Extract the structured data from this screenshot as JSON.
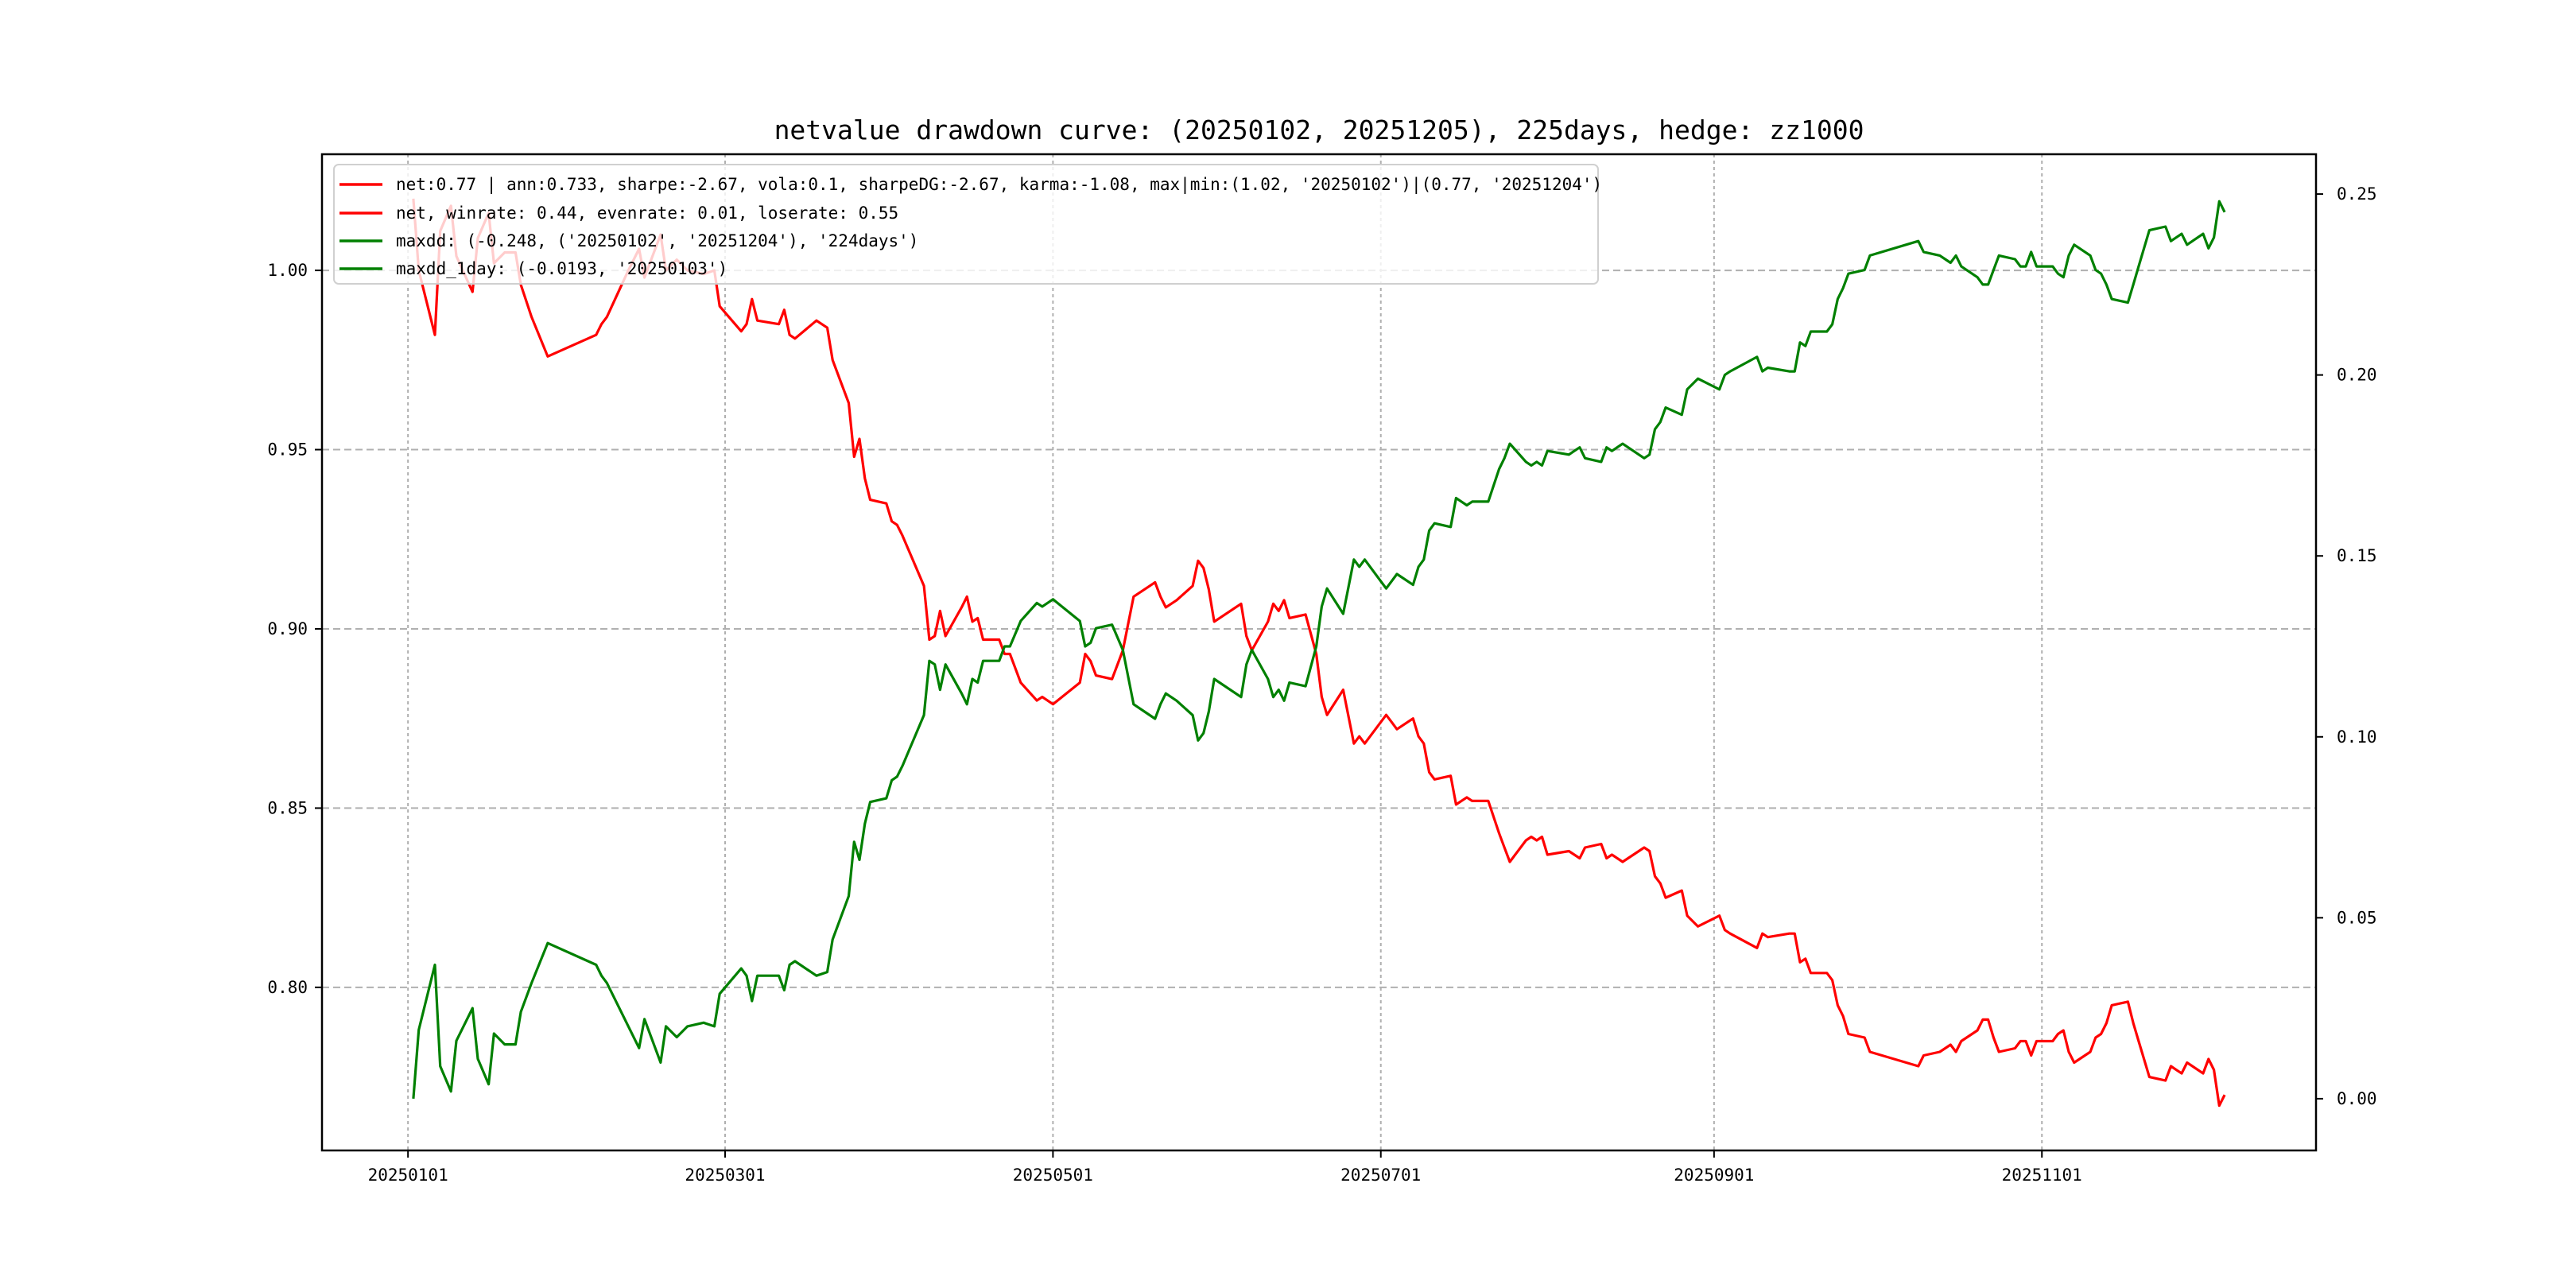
{
  "chart_data": {
    "type": "line",
    "title": "netvalue drawdown curve: (20250102, 20251205), 225days, hedge: zz1000",
    "x_unit": "days since 20250101",
    "xlim": [
      -16,
      355
    ],
    "ylim_left": [
      0.7545,
      1.0324
    ],
    "ylim_right": [
      -0.0143,
      0.261
    ],
    "grid": true,
    "legend_placement": "upper-left",
    "x_ticks": [
      {
        "label": "20250101",
        "x": 0
      },
      {
        "label": "20250301",
        "x": 59
      },
      {
        "label": "20250501",
        "x": 120
      },
      {
        "label": "20250701",
        "x": 181
      },
      {
        "label": "20250901",
        "x": 243
      },
      {
        "label": "20251101",
        "x": 304
      }
    ],
    "y_ticks_left": [
      "0.80",
      "0.85",
      "0.90",
      "0.95",
      "1.00"
    ],
    "y_ticks_right": [
      "0.00",
      "0.05",
      "0.10",
      "0.15",
      "0.20",
      "0.25"
    ],
    "legend": [
      {
        "label": "net:0.77 | ann:0.733, sharpe:-2.67, vola:0.1, sharpeDG:-2.67, karma:-1.08, max|min:(1.02, '20250102')|(0.77, '20251204')",
        "color": "#ff0000"
      },
      {
        "label": "net, winrate: 0.44, evenrate: 0.01, loserate: 0.55",
        "color": "#ff0000"
      },
      {
        "label": "maxdd: (-0.248, ('20250102', '20251204'), '224days')",
        "color": "#008000"
      },
      {
        "label": "maxdd_1day: (-0.0193, '20250103')",
        "color": "#008000"
      }
    ],
    "series": [
      {
        "name": "net",
        "axis": "left",
        "color": "#ff0000",
        "x": [
          1,
          2,
          5,
          6,
          8,
          9,
          12,
          13,
          15,
          16,
          18,
          20,
          21,
          23,
          26,
          35,
          36,
          37,
          41,
          43,
          44,
          47,
          48,
          50,
          52,
          55,
          57,
          58,
          62,
          63,
          64,
          65,
          69,
          70,
          71,
          72,
          76,
          78,
          79,
          82,
          83,
          84,
          85,
          86,
          89,
          90,
          91,
          92,
          96,
          97,
          98,
          99,
          100,
          103,
          104,
          105,
          106,
          107,
          110,
          111,
          112,
          114,
          117,
          118,
          120,
          125,
          126,
          127,
          128,
          131,
          133,
          135,
          138,
          139,
          140,
          141,
          143,
          146,
          147,
          148,
          149,
          150,
          155,
          156,
          157,
          160,
          161,
          162,
          163,
          164,
          167,
          169,
          170,
          171,
          174,
          176,
          177,
          178,
          182,
          183,
          184,
          187,
          188,
          189,
          190,
          191,
          194,
          195,
          196,
          197,
          198,
          201,
          203,
          204,
          205,
          208,
          209,
          210,
          211,
          212,
          216,
          217,
          218,
          219,
          222,
          223,
          224,
          226,
          230,
          231,
          232,
          233,
          234,
          237,
          238,
          240,
          244,
          245,
          246,
          251,
          252,
          253,
          257,
          258,
          259,
          260,
          261,
          264,
          265,
          266,
          267,
          268,
          271,
          272,
          281,
          282,
          285,
          286,
          287,
          288,
          289,
          292,
          293,
          294,
          295,
          296,
          299,
          300,
          301,
          302,
          303,
          306,
          307,
          308,
          309,
          310,
          313,
          314,
          315,
          316,
          317,
          320,
          321,
          322,
          324,
          327,
          328,
          329,
          330,
          331,
          334,
          335,
          336,
          337,
          338
        ],
        "y": [
          1.02,
          1.0,
          0.982,
          1.011,
          1.018,
          1.004,
          0.994,
          1.009,
          1.016,
          1.002,
          1.005,
          1.005,
          0.996,
          0.987,
          0.976,
          0.982,
          0.985,
          0.987,
          1.0,
          1.006,
          0.998,
          1.01,
          1.0,
          1.003,
          1.0,
          0.999,
          1.0,
          0.99,
          0.983,
          0.985,
          0.992,
          0.986,
          0.985,
          0.989,
          0.982,
          0.981,
          0.986,
          0.984,
          0.975,
          0.963,
          0.948,
          0.953,
          0.942,
          0.936,
          0.935,
          0.93,
          0.929,
          0.926,
          0.912,
          0.897,
          0.898,
          0.905,
          0.898,
          0.906,
          0.909,
          0.902,
          0.903,
          0.897,
          0.897,
          0.893,
          0.893,
          0.885,
          0.88,
          0.881,
          0.879,
          0.885,
          0.893,
          0.891,
          0.887,
          0.886,
          0.894,
          0.909,
          0.912,
          0.913,
          0.909,
          0.906,
          0.908,
          0.912,
          0.919,
          0.917,
          0.911,
          0.902,
          0.907,
          0.898,
          0.894,
          0.902,
          0.907,
          0.905,
          0.908,
          0.903,
          0.904,
          0.893,
          0.881,
          0.876,
          0.883,
          0.868,
          0.87,
          0.868,
          0.876,
          0.874,
          0.872,
          0.875,
          0.87,
          0.868,
          0.86,
          0.858,
          0.859,
          0.851,
          0.852,
          0.853,
          0.852,
          0.852,
          0.843,
          0.839,
          0.835,
          0.841,
          0.842,
          0.841,
          0.842,
          0.837,
          0.838,
          0.837,
          0.836,
          0.839,
          0.84,
          0.836,
          0.837,
          0.835,
          0.839,
          0.838,
          0.831,
          0.829,
          0.825,
          0.827,
          0.82,
          0.817,
          0.82,
          0.816,
          0.815,
          0.811,
          0.815,
          0.814,
          0.815,
          0.815,
          0.807,
          0.808,
          0.804,
          0.804,
          0.802,
          0.795,
          0.792,
          0.787,
          0.786,
          0.782,
          0.778,
          0.781,
          0.782,
          0.783,
          0.784,
          0.782,
          0.785,
          0.788,
          0.791,
          0.791,
          0.786,
          0.782,
          0.783,
          0.785,
          0.785,
          0.781,
          0.785,
          0.785,
          0.787,
          0.788,
          0.782,
          0.779,
          0.782,
          0.786,
          0.787,
          0.79,
          0.795,
          0.796,
          0.79,
          0.785,
          0.775,
          0.774,
          0.778,
          0.777,
          0.776,
          0.779,
          0.776,
          0.78,
          0.777,
          0.767,
          0.77
        ]
      },
      {
        "name": "maxdd",
        "axis": "right",
        "color": "#008000",
        "x": [
          1,
          2,
          5,
          6,
          8,
          9,
          12,
          13,
          15,
          16,
          18,
          20,
          21,
          23,
          26,
          35,
          36,
          37,
          41,
          43,
          44,
          47,
          48,
          50,
          52,
          55,
          57,
          58,
          62,
          63,
          64,
          65,
          69,
          70,
          71,
          72,
          76,
          78,
          79,
          82,
          83,
          84,
          85,
          86,
          89,
          90,
          91,
          92,
          96,
          97,
          98,
          99,
          100,
          103,
          104,
          105,
          106,
          107,
          110,
          111,
          112,
          114,
          117,
          118,
          120,
          125,
          126,
          127,
          128,
          131,
          133,
          135,
          138,
          139,
          140,
          141,
          143,
          146,
          147,
          148,
          149,
          150,
          155,
          156,
          157,
          160,
          161,
          162,
          163,
          164,
          167,
          169,
          170,
          171,
          174,
          176,
          177,
          178,
          182,
          183,
          184,
          187,
          188,
          189,
          190,
          191,
          194,
          195,
          196,
          197,
          198,
          201,
          203,
          204,
          205,
          208,
          209,
          210,
          211,
          212,
          216,
          217,
          218,
          219,
          222,
          223,
          224,
          226,
          230,
          231,
          232,
          233,
          234,
          237,
          238,
          240,
          244,
          245,
          246,
          251,
          252,
          253,
          257,
          258,
          259,
          260,
          261,
          264,
          265,
          266,
          267,
          268,
          271,
          272,
          281,
          282,
          285,
          286,
          287,
          288,
          289,
          292,
          293,
          294,
          295,
          296,
          299,
          300,
          301,
          302,
          303,
          306,
          307,
          308,
          309,
          310,
          313,
          314,
          315,
          316,
          317,
          320,
          321,
          322,
          324,
          327,
          328,
          329,
          330,
          331,
          334,
          335,
          336,
          337,
          338
        ],
        "y": [
          0.0,
          0.019,
          0.037,
          0.009,
          0.002,
          0.016,
          0.025,
          0.011,
          0.004,
          0.018,
          0.015,
          0.015,
          0.024,
          0.032,
          0.043,
          0.037,
          0.034,
          0.032,
          0.02,
          0.014,
          0.022,
          0.01,
          0.02,
          0.017,
          0.02,
          0.021,
          0.02,
          0.029,
          0.036,
          0.034,
          0.027,
          0.034,
          0.034,
          0.03,
          0.037,
          0.038,
          0.034,
          0.035,
          0.044,
          0.056,
          0.071,
          0.066,
          0.076,
          0.082,
          0.083,
          0.088,
          0.089,
          0.092,
          0.106,
          0.121,
          0.12,
          0.113,
          0.12,
          0.112,
          0.109,
          0.116,
          0.115,
          0.121,
          0.121,
          0.125,
          0.125,
          0.132,
          0.137,
          0.136,
          0.138,
          0.132,
          0.125,
          0.126,
          0.13,
          0.131,
          0.124,
          0.109,
          0.106,
          0.105,
          0.109,
          0.112,
          0.11,
          0.106,
          0.099,
          0.101,
          0.107,
          0.116,
          0.111,
          0.12,
          0.124,
          0.116,
          0.111,
          0.113,
          0.11,
          0.115,
          0.114,
          0.125,
          0.136,
          0.141,
          0.134,
          0.149,
          0.147,
          0.149,
          0.141,
          0.143,
          0.145,
          0.142,
          0.147,
          0.149,
          0.157,
          0.159,
          0.158,
          0.166,
          0.165,
          0.164,
          0.165,
          0.165,
          0.174,
          0.177,
          0.181,
          0.176,
          0.175,
          0.176,
          0.175,
          0.179,
          0.178,
          0.179,
          0.18,
          0.177,
          0.176,
          0.18,
          0.179,
          0.181,
          0.177,
          0.178,
          0.185,
          0.187,
          0.191,
          0.189,
          0.196,
          0.199,
          0.196,
          0.2,
          0.201,
          0.205,
          0.201,
          0.202,
          0.201,
          0.201,
          0.209,
          0.208,
          0.212,
          0.212,
          0.214,
          0.221,
          0.224,
          0.228,
          0.229,
          0.233,
          0.237,
          0.234,
          0.233,
          0.232,
          0.231,
          0.233,
          0.23,
          0.227,
          0.225,
          0.225,
          0.229,
          0.233,
          0.232,
          0.23,
          0.23,
          0.234,
          0.23,
          0.23,
          0.228,
          0.227,
          0.233,
          0.236,
          0.233,
          0.229,
          0.228,
          0.225,
          0.221,
          0.22,
          0.225,
          0.23,
          0.24,
          0.241,
          0.237,
          0.238,
          0.239,
          0.236,
          0.239,
          0.235,
          0.238,
          0.248,
          0.245
        ]
      }
    ]
  }
}
